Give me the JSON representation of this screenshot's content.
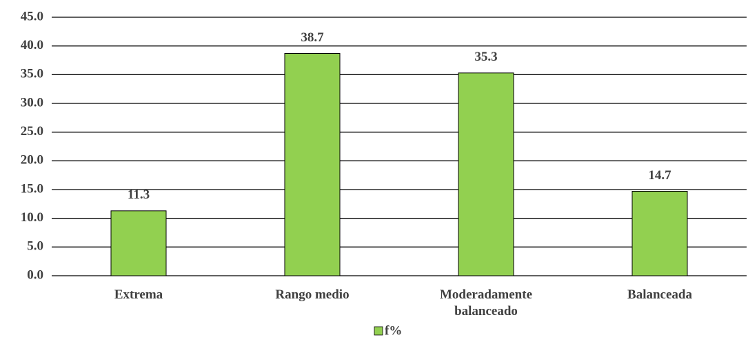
{
  "chart_data": {
    "type": "bar",
    "categories": [
      "Extrema",
      "Rango medio",
      "Moderadamente balanceado",
      "Balanceada"
    ],
    "series": [
      {
        "name": "f%",
        "color": "#92d050",
        "values": [
          11.3,
          38.7,
          35.3,
          14.7
        ]
      }
    ],
    "ylim": [
      0,
      45
    ],
    "yticks": [
      {
        "value": 0,
        "label": "0.0"
      },
      {
        "value": 5,
        "label": "5.0"
      },
      {
        "value": 10,
        "label": "10.0"
      },
      {
        "value": 15,
        "label": "15.0"
      },
      {
        "value": 20,
        "label": "20.0"
      },
      {
        "value": 25,
        "label": "25.0"
      },
      {
        "value": 30,
        "label": "30.0"
      },
      {
        "value": 35,
        "label": "35.0"
      },
      {
        "value": 40,
        "label": "40.0"
      },
      {
        "value": 45,
        "label": "45.0"
      }
    ],
    "grid": true,
    "legend": "bottom"
  }
}
